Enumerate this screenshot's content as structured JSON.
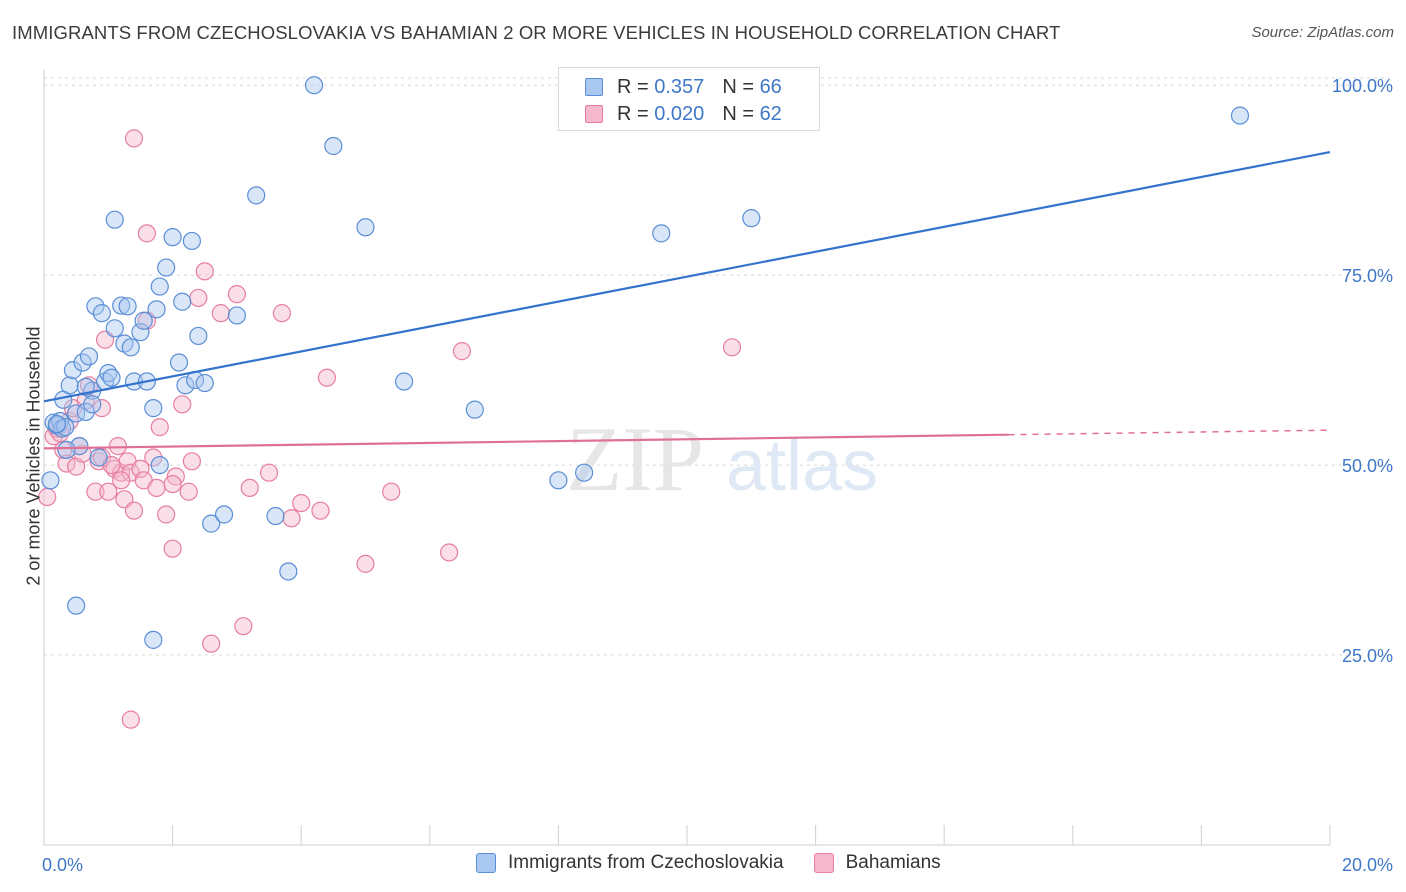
{
  "title": "IMMIGRANTS FROM CZECHOSLOVAKIA VS BAHAMIAN 2 OR MORE VEHICLES IN HOUSEHOLD CORRELATION CHART",
  "source": "Source: ZipAtlas.com",
  "watermark": {
    "zip": "ZIP",
    "atlas": "atlas"
  },
  "legend": {
    "r_label": "R =",
    "n_label": "N =",
    "rows": [
      {
        "series": "Immigrants from Czechoslovakia",
        "r": "0.357",
        "n": "66"
      },
      {
        "series": "Bahamians",
        "r": "0.020",
        "n": "62"
      }
    ]
  },
  "colors": {
    "blue_fill": "#a9c8f0",
    "blue_stroke": "#5b8ed6",
    "blue_line": "#3373cc",
    "pink_fill": "#f5b8cc",
    "pink_stroke": "#e67ea0",
    "pink_line": "#e06f96",
    "axis_label": "#3f78c8",
    "grid": "#d8d8d8"
  },
  "chart_data": {
    "type": "scatter",
    "title": "IMMIGRANTS FROM CZECHOSLOVAKIA VS BAHAMIAN 2 OR MORE VEHICLES IN HOUSEHOLD CORRELATION CHART",
    "xlabel": "",
    "ylabel": "2 or more Vehicles in Household",
    "xlim": [
      0,
      20
    ],
    "ylim": [
      0,
      102
    ],
    "x_tick_labels": [
      {
        "value": 0,
        "label": "0.0%"
      },
      {
        "value": 20,
        "label": "20.0%"
      }
    ],
    "y_tick_labels": [
      {
        "value": 25,
        "label": "25.0%"
      },
      {
        "value": 50,
        "label": "50.0%"
      },
      {
        "value": 75,
        "label": "75.0%"
      },
      {
        "value": 100,
        "label": "100.0%"
      }
    ],
    "grid": true,
    "legend_position": "top-center",
    "series": [
      {
        "name": "Immigrants from Czechoslovakia",
        "color": "blue",
        "trend": {
          "x": [
            0,
            20
          ],
          "y": [
            58.4,
            91.2
          ],
          "dashed_from": null
        },
        "points": [
          [
            0.1,
            48.0
          ],
          [
            0.15,
            55.6
          ],
          [
            0.2,
            55.2
          ],
          [
            0.25,
            55.8
          ],
          [
            0.28,
            54.8
          ],
          [
            0.3,
            58.6
          ],
          [
            0.33,
            55.0
          ],
          [
            0.4,
            60.5
          ],
          [
            0.45,
            62.5
          ],
          [
            0.5,
            56.8
          ],
          [
            0.55,
            52.5
          ],
          [
            0.6,
            63.5
          ],
          [
            0.65,
            57.0
          ],
          [
            0.7,
            64.3
          ],
          [
            0.75,
            59.8
          ],
          [
            0.8,
            70.9
          ],
          [
            0.85,
            51.0
          ],
          [
            0.9,
            70.0
          ],
          [
            0.95,
            61.0
          ],
          [
            1.0,
            62.1
          ],
          [
            1.1,
            68.0
          ],
          [
            1.2,
            71.0
          ],
          [
            1.25,
            66.0
          ],
          [
            1.3,
            70.9
          ],
          [
            1.35,
            65.5
          ],
          [
            1.4,
            61.0
          ],
          [
            1.5,
            67.5
          ],
          [
            1.55,
            69.0
          ],
          [
            1.6,
            61.0
          ],
          [
            1.7,
            57.5
          ],
          [
            1.75,
            70.5
          ],
          [
            1.8,
            73.5
          ],
          [
            1.9,
            76.0
          ],
          [
            2.0,
            80.0
          ],
          [
            2.1,
            63.5
          ],
          [
            2.15,
            71.5
          ],
          [
            2.2,
            60.5
          ],
          [
            2.3,
            79.5
          ],
          [
            2.35,
            61.2
          ],
          [
            2.4,
            67.0
          ],
          [
            2.5,
            60.8
          ],
          [
            2.6,
            42.3
          ],
          [
            2.8,
            43.5
          ],
          [
            3.0,
            69.7
          ],
          [
            3.3,
            85.5
          ],
          [
            3.6,
            43.3
          ],
          [
            3.8,
            36.0
          ],
          [
            4.2,
            100.0
          ],
          [
            4.5,
            92.0
          ],
          [
            5.0,
            81.3
          ],
          [
            5.6,
            61.0
          ],
          [
            6.7,
            57.3
          ],
          [
            8.0,
            48.0
          ],
          [
            8.4,
            49.0
          ],
          [
            9.6,
            80.5
          ],
          [
            11.0,
            82.5
          ],
          [
            18.6,
            96.0
          ],
          [
            0.5,
            31.5
          ],
          [
            1.7,
            27.0
          ],
          [
            1.8,
            50.0
          ],
          [
            1.1,
            82.3
          ],
          [
            0.2,
            55.4
          ],
          [
            0.65,
            60.3
          ],
          [
            1.05,
            61.5
          ],
          [
            0.75,
            58.0
          ],
          [
            0.35,
            52.0
          ]
        ]
      },
      {
        "name": "Bahamians",
        "color": "pink",
        "trend": {
          "x": [
            0,
            20
          ],
          "y": [
            52.2,
            54.6
          ],
          "dashed_from": 15
        },
        "points": [
          [
            0.05,
            45.8
          ],
          [
            0.15,
            53.8
          ],
          [
            0.2,
            54.8
          ],
          [
            0.3,
            52.0
          ],
          [
            0.35,
            50.2
          ],
          [
            0.4,
            55.8
          ],
          [
            0.45,
            57.5
          ],
          [
            0.5,
            49.8
          ],
          [
            0.6,
            51.5
          ],
          [
            0.65,
            58.5
          ],
          [
            0.7,
            60.5
          ],
          [
            0.8,
            46.5
          ],
          [
            0.85,
            50.5
          ],
          [
            0.9,
            57.5
          ],
          [
            0.95,
            66.5
          ],
          [
            1.0,
            46.5
          ],
          [
            1.1,
            49.5
          ],
          [
            1.15,
            52.5
          ],
          [
            1.2,
            49.0
          ],
          [
            1.25,
            45.5
          ],
          [
            1.3,
            50.5
          ],
          [
            1.35,
            49.0
          ],
          [
            1.4,
            44.0
          ],
          [
            1.5,
            49.5
          ],
          [
            1.55,
            48.0
          ],
          [
            1.6,
            69.0
          ],
          [
            1.7,
            51.0
          ],
          [
            1.75,
            47.0
          ],
          [
            1.8,
            55.0
          ],
          [
            1.9,
            43.5
          ],
          [
            2.0,
            39.0
          ],
          [
            2.05,
            48.5
          ],
          [
            2.15,
            58.0
          ],
          [
            2.25,
            46.5
          ],
          [
            2.3,
            50.5
          ],
          [
            2.4,
            72.0
          ],
          [
            2.5,
            75.5
          ],
          [
            2.6,
            26.5
          ],
          [
            2.75,
            70.0
          ],
          [
            3.0,
            72.5
          ],
          [
            3.2,
            47.0
          ],
          [
            3.5,
            49.0
          ],
          [
            3.7,
            70.0
          ],
          [
            3.85,
            43.0
          ],
          [
            4.3,
            44.0
          ],
          [
            4.4,
            61.5
          ],
          [
            5.0,
            37.0
          ],
          [
            5.4,
            46.5
          ],
          [
            6.3,
            38.5
          ],
          [
            6.5,
            65.0
          ],
          [
            10.7,
            65.5
          ],
          [
            1.4,
            93.0
          ],
          [
            1.6,
            80.5
          ],
          [
            1.35,
            16.5
          ],
          [
            3.1,
            28.8
          ],
          [
            1.2,
            48.0
          ],
          [
            2.0,
            47.5
          ],
          [
            0.25,
            54.2
          ],
          [
            4.0,
            45.0
          ],
          [
            0.9,
            51.0
          ],
          [
            1.05,
            50.0
          ],
          [
            0.55,
            52.5
          ]
        ]
      }
    ]
  }
}
